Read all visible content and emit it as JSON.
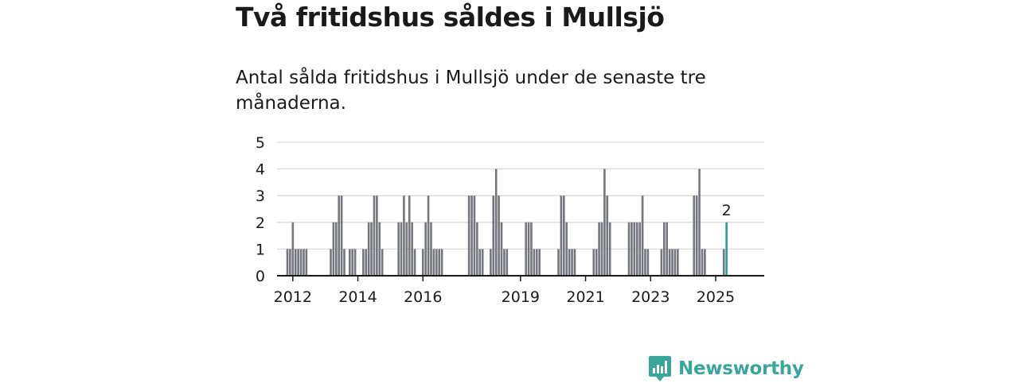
{
  "title": "Två fritidshus såldes i Mullsjö",
  "subtitle": "Antal sålda fritidshus i Mullsjö under de senaste tre månaderna.",
  "brand": {
    "name": "Newsworthy",
    "color": "#3aa69b"
  },
  "colors": {
    "bar": "#75757d",
    "highlight": "#2a9d96",
    "grid": "#d9d9d9",
    "axis": "#1a1a1a"
  },
  "chart_data": {
    "type": "bar",
    "title": "Två fritidshus såldes i Mullsjö",
    "subtitle": "Antal sålda fritidshus i Mullsjö under de senaste tre månaderna.",
    "xlabel": "",
    "ylabel": "",
    "ylim": [
      0,
      5
    ],
    "yticks": [
      0,
      1,
      2,
      3,
      4,
      5
    ],
    "xticks": [
      "2012",
      "2014",
      "2016",
      "2019",
      "2021",
      "2023",
      "2025"
    ],
    "grid": true,
    "start": "2011-11",
    "period": "month",
    "values": [
      1,
      1,
      2,
      1,
      1,
      1,
      1,
      1,
      0,
      0,
      0,
      0,
      0,
      0,
      0,
      0,
      1,
      2,
      2,
      3,
      3,
      1,
      0,
      1,
      1,
      1,
      0,
      0,
      1,
      1,
      2,
      2,
      3,
      3,
      2,
      1,
      0,
      0,
      0,
      0,
      0,
      2,
      2,
      3,
      2,
      3,
      2,
      1,
      0,
      0,
      1,
      2,
      3,
      2,
      1,
      1,
      1,
      1,
      0,
      0,
      0,
      0,
      0,
      0,
      0,
      0,
      0,
      3,
      3,
      3,
      2,
      1,
      1,
      0,
      0,
      1,
      3,
      4,
      3,
      2,
      1,
      1,
      0,
      0,
      0,
      0,
      0,
      0,
      2,
      2,
      2,
      1,
      1,
      1,
      0,
      0,
      0,
      0,
      0,
      0,
      1,
      3,
      3,
      2,
      1,
      1,
      1,
      0,
      0,
      0,
      0,
      0,
      0,
      1,
      1,
      2,
      2,
      4,
      3,
      2,
      0,
      0,
      0,
      0,
      0,
      0,
      2,
      2,
      2,
      2,
      2,
      3,
      1,
      1,
      0,
      0,
      0,
      0,
      1,
      2,
      2,
      1,
      1,
      1,
      1,
      0,
      0,
      0,
      0,
      0,
      3,
      3,
      4,
      1,
      1,
      0,
      0,
      0,
      0,
      0,
      0,
      1,
      2
    ],
    "highlight_last": true,
    "highlight_label": "2"
  }
}
